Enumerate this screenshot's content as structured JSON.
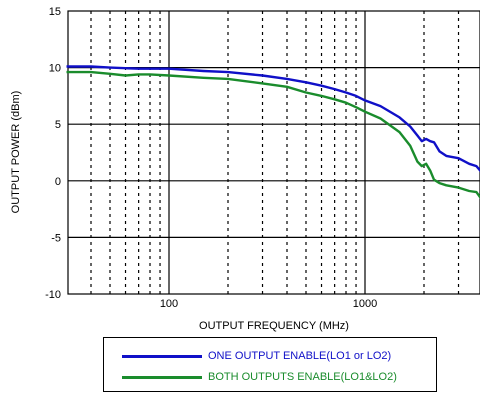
{
  "chart_data": {
    "type": "line",
    "xlabel": "OUTPUT FREQUENCY (MHz)",
    "ylabel": "OUTPUT POWER (dBm)",
    "xscale": "log",
    "xlim": [
      30,
      4000
    ],
    "ylim": [
      -10,
      15
    ],
    "x_tick_labels": [
      "100",
      "1000"
    ],
    "y_tick_labels": [
      "15",
      "10",
      "5",
      "0",
      "-5",
      "-10"
    ],
    "y_ticks": [
      15,
      10,
      5,
      0,
      -5,
      -10
    ],
    "x_major_ticks": [
      100,
      1000
    ],
    "grid": "on",
    "legend_position": "bottom",
    "series": [
      {
        "name": "ONE OUTPUT ENABLE(LO1 or LO2)",
        "color": "#1010c8",
        "x": [
          30,
          40,
          50,
          60,
          70,
          80,
          100,
          150,
          200,
          300,
          400,
          500,
          600,
          700,
          800,
          900,
          1000,
          1200,
          1500,
          1700,
          1850,
          1950,
          2050,
          2150,
          2250,
          2400,
          2600,
          3000,
          3400,
          3700,
          4000
        ],
        "y": [
          10.1,
          10.1,
          10.0,
          9.95,
          9.9,
          9.9,
          9.9,
          9.7,
          9.6,
          9.3,
          9.0,
          8.7,
          8.4,
          8.1,
          7.8,
          7.5,
          7.1,
          6.6,
          5.6,
          4.8,
          4.0,
          3.5,
          3.7,
          3.5,
          3.4,
          2.6,
          2.2,
          2.0,
          1.5,
          1.3,
          0.6
        ]
      },
      {
        "name": "BOTH OUTPUTS ENABLE(LO1&LO2)",
        "color": "#1a8c2c",
        "x": [
          30,
          40,
          50,
          60,
          70,
          80,
          100,
          150,
          200,
          300,
          400,
          500,
          600,
          700,
          800,
          900,
          1000,
          1200,
          1500,
          1700,
          1850,
          1950,
          2050,
          2150,
          2250,
          2400,
          2600,
          3000,
          3400,
          3700,
          4000
        ],
        "y": [
          9.6,
          9.6,
          9.45,
          9.3,
          9.4,
          9.4,
          9.3,
          9.1,
          9.0,
          8.6,
          8.3,
          7.8,
          7.5,
          7.2,
          6.9,
          6.5,
          6.1,
          5.5,
          4.3,
          3.1,
          1.7,
          1.3,
          1.5,
          0.9,
          0.1,
          -0.2,
          -0.4,
          -0.6,
          -0.9,
          -1.0,
          -1.8
        ]
      }
    ]
  }
}
